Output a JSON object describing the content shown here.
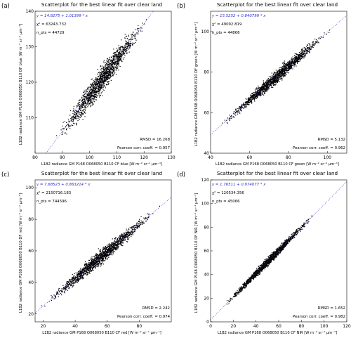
{
  "chart_data": [
    {
      "type": "scatter",
      "panel_label": "(a)",
      "title": "Scatterplot for the best linear fit over clear land",
      "xlabel": "L1B2 radiance GM P168 O068050 B110 CF blue [W m⁻² sr⁻¹ μm⁻¹]",
      "ylabel": "L1B2 radiance GM P168 O068050 B110 DF blue [W m⁻² sr⁻¹ μm⁻¹]",
      "xlim": [
        80,
        130
      ],
      "ylim": [
        100,
        140
      ],
      "xticks": [
        80,
        90,
        100,
        110,
        120,
        130
      ],
      "yticks": [
        110,
        120,
        130,
        140
      ],
      "fit": {
        "intercept": 14.8275,
        "slope": 1.01399
      },
      "equation": "y = 14.8275 + 1.01399 * x",
      "chi2": "χ² = 63243.732",
      "n_pts": "n_pts = 44729",
      "rmsd": "RMSD = 16.268",
      "pearson": "Pearson corr. coeff. = 0.957",
      "cloud": {
        "x_range": [
          88,
          121
        ],
        "spread": 2.6
      }
    },
    {
      "type": "scatter",
      "panel_label": "(b)",
      "title": "Scatterplot for the best linear fit over clear land",
      "xlabel": "L1B2 radiance GM P168 O068050 B110 CF green [W m⁻² sr⁻¹ μm⁻¹]",
      "ylabel": "L1B2 radiance GM P168 O068050 B110 DF green [W m⁻² sr⁻¹ μm⁻¹]",
      "xlim": [
        40,
        110
      ],
      "ylim": [
        40,
        110
      ],
      "xticks": [
        40,
        60,
        80,
        100
      ],
      "yticks": [
        40,
        60,
        80,
        100
      ],
      "fit": {
        "intercept": 15.5252,
        "slope": 0.840799
      },
      "equation": "y = 15.5252 + 0.840799 * x",
      "chi2": "χ² = 49092.819",
      "n_pts": "n_pts = 44866",
      "rmsd": "RMSD = 5.132",
      "pearson": "Pearson corr. coeff. = 0.962",
      "cloud": {
        "x_range": [
          46,
          102
        ],
        "spread": 2.2
      }
    },
    {
      "type": "scatter",
      "panel_label": "(c)",
      "title": "Scatterplot for the best linear fit over clear land",
      "xlabel": "L1B2 radiance GM P168 O068050 B110 CF red [W m⁻² sr⁻¹ μm⁻¹]",
      "ylabel": "L1B2 radiance GM P168 O068050 B110 DF red [W m⁻² sr⁻¹ μm⁻¹]",
      "xlim": [
        15,
        100
      ],
      "ylim": [
        15,
        105
      ],
      "xticks": [
        20,
        40,
        60,
        80
      ],
      "yticks": [
        20,
        40,
        60,
        80,
        100
      ],
      "fit": {
        "intercept": 7.68523,
        "slope": 0.863214
      },
      "equation": "y = 7.68523 + 0.863214 * x",
      "chi2": "χ² = 2150716.183",
      "n_pts": "n_pts = 744596",
      "rmsd": "RMSD = 2.242",
      "pearson": "Pearson corr. coeff. = 0.974",
      "cloud": {
        "x_range": [
          20,
          92
        ],
        "spread": 3.2
      }
    },
    {
      "type": "scatter",
      "panel_label": "(d)",
      "title": "Scatterplot for the best linear fit over clear land",
      "xlabel": "L1B2 radiance GM P168 O068050 B110 CF NIR [W m⁻² sr⁻¹ μm⁻¹]",
      "ylabel": "L1B2 radiance GM P168 O068050 B110 DF NIR [W m⁻² sr⁻¹ μm⁻¹]",
      "xlim": [
        0,
        120
      ],
      "ylim": [
        0,
        120
      ],
      "xticks": [
        0,
        20,
        40,
        60,
        80,
        100,
        120
      ],
      "yticks": [
        0,
        20,
        40,
        60,
        80,
        100,
        120
      ],
      "fit": {
        "intercept": 1.76511,
        "slope": 0.974077
      },
      "equation": "y = 1.76511 + 0.974077 * x",
      "chi2": "χ² = 120534.356",
      "n_pts": "n_pts = 45066",
      "rmsd": "RMSD = 1.652",
      "pearson": "Pearson corr. coeff. = 0.982",
      "cloud": {
        "x_range": [
          10,
          92
        ],
        "spread": 2.4
      }
    }
  ]
}
